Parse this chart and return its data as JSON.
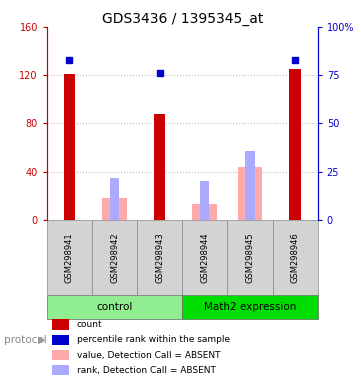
{
  "title": "GDS3436 / 1395345_at",
  "samples": [
    "GSM298941",
    "GSM298942",
    "GSM298943",
    "GSM298944",
    "GSM298945",
    "GSM298946"
  ],
  "group_control_label": "control",
  "group_math2_label": "Math2 expression",
  "group_control_color": "#90ee90",
  "group_math2_color": "#00dd00",
  "count_values": [
    121,
    0,
    88,
    0,
    0,
    125
  ],
  "percentile_values": [
    83,
    0,
    76,
    0,
    0,
    83
  ],
  "absent_value_bars": [
    0,
    18,
    0,
    13,
    44,
    0
  ],
  "absent_rank_bars": [
    0,
    35,
    0,
    32,
    57,
    0
  ],
  "ylim_left": [
    0,
    160
  ],
  "ylim_right": [
    0,
    100
  ],
  "left_ticks": [
    0,
    40,
    80,
    120,
    160
  ],
  "right_ticks": [
    0,
    25,
    50,
    75,
    100
  ],
  "left_tick_labels": [
    "0",
    "40",
    "80",
    "120",
    "160"
  ],
  "right_tick_labels": [
    "0",
    "25",
    "50",
    "75",
    "100%"
  ],
  "right_tick_labels_top": "100%",
  "count_color": "#cc0000",
  "percentile_color": "#0000cc",
  "absent_value_color": "#ffaaaa",
  "absent_rank_color": "#aaaaff",
  "title_fontsize": 10,
  "axis_color_left": "#cc0000",
  "axis_color_right": "#0000cc",
  "sample_box_color": "#d3d3d3",
  "protocol_label": "protocol",
  "legend_labels": [
    "count",
    "percentile rank within the sample",
    "value, Detection Call = ABSENT",
    "rank, Detection Call = ABSENT"
  ],
  "legend_colors": [
    "#cc0000",
    "#0000cc",
    "#ffaaaa",
    "#aaaaff"
  ]
}
